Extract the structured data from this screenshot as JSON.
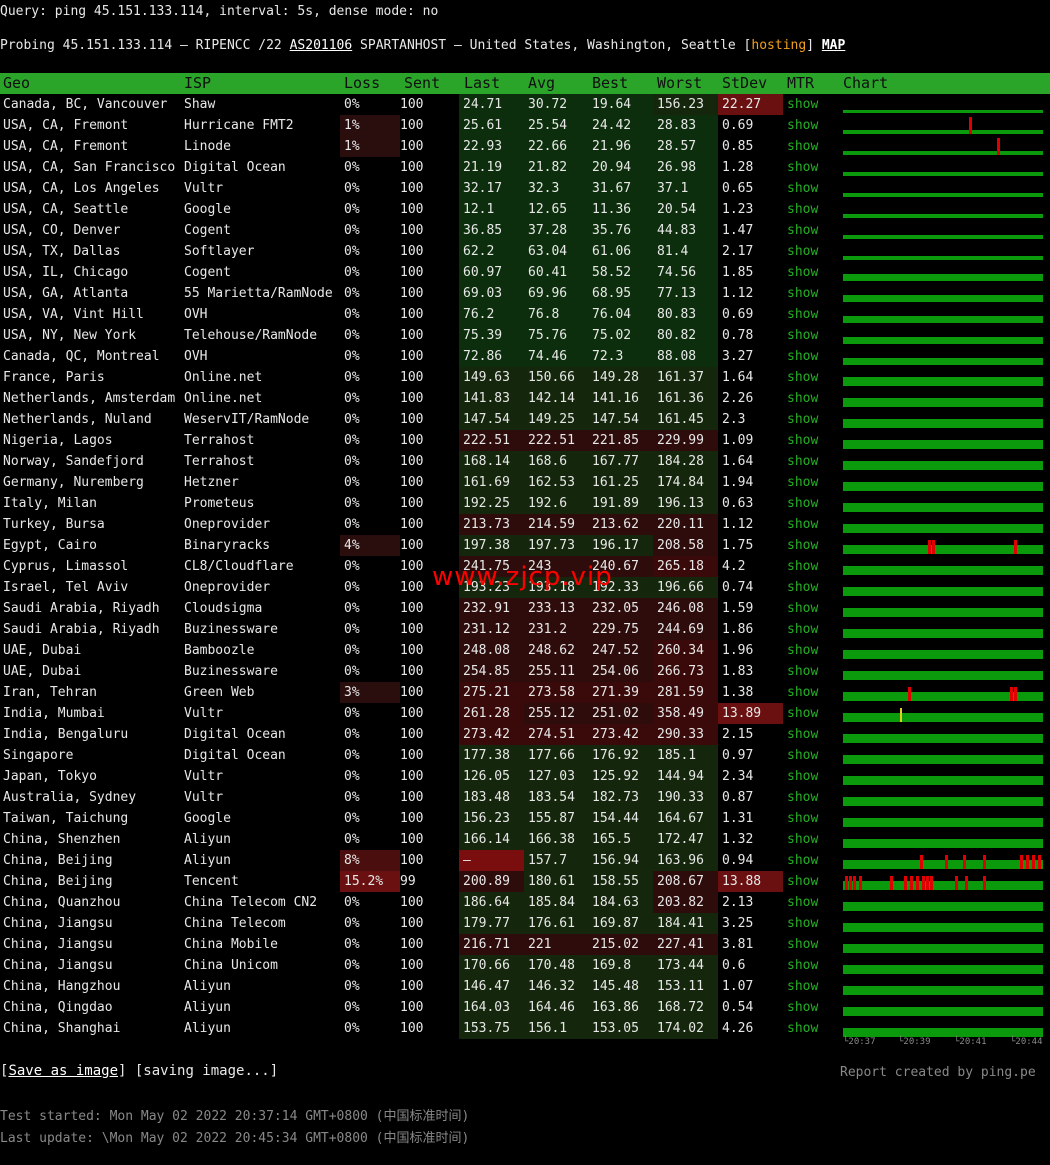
{
  "query": "Query: ping 45.151.133.114, interval: 5s, dense mode: no",
  "probe": {
    "prefix": "Probing 45.151.133.114 — RIPENCC /22 ",
    "asn": "AS201106",
    "middle": " SPARTANHOST — United States, Washington, Seattle [",
    "tag": "hosting",
    "close": "] ",
    "map": "MAP"
  },
  "headers": [
    "Geo",
    "ISP",
    "Loss",
    "Sent",
    "Last",
    "Avg",
    "Best",
    "Worst",
    "StDev",
    "MTR",
    "Chart"
  ],
  "rows": [
    {
      "geo": "Canada, BC, Vancouver",
      "isp": "Shaw",
      "loss": "0%",
      "sent": "100",
      "last": "24.71",
      "avg": "30.72",
      "best": "19.64",
      "worst": "156.23",
      "stdev": "22.27",
      "mtr": "show",
      "chart": "noisy"
    },
    {
      "geo": "USA, CA, Fremont",
      "isp": "Hurricane FMT2",
      "loss": "1%",
      "sent": "100",
      "last": "25.61",
      "avg": "25.54",
      "best": "24.42",
      "worst": "28.83",
      "stdev": "0.69",
      "mtr": "show",
      "chart": "thin",
      "spikes": [
        0.64
      ]
    },
    {
      "geo": "USA, CA, Fremont",
      "isp": "Linode",
      "loss": "1%",
      "sent": "100",
      "last": "22.93",
      "avg": "22.66",
      "best": "21.96",
      "worst": "28.57",
      "stdev": "0.85",
      "mtr": "show",
      "chart": "thin",
      "spikes": [
        0.78
      ]
    },
    {
      "geo": "USA, CA, San Francisco",
      "isp": "Digital Ocean",
      "loss": "0%",
      "sent": "100",
      "last": "21.19",
      "avg": "21.82",
      "best": "20.94",
      "worst": "26.98",
      "stdev": "1.28",
      "mtr": "show",
      "chart": "thin"
    },
    {
      "geo": "USA, CA, Los Angeles",
      "isp": "Vultr",
      "loss": "0%",
      "sent": "100",
      "last": "32.17",
      "avg": "32.3",
      "best": "31.67",
      "worst": "37.1",
      "stdev": "0.65",
      "mtr": "show",
      "chart": "thin"
    },
    {
      "geo": "USA, CA, Seattle",
      "isp": "Google",
      "loss": "0%",
      "sent": "100",
      "last": "12.1",
      "avg": "12.65",
      "best": "11.36",
      "worst": "20.54",
      "stdev": "1.23",
      "mtr": "show",
      "chart": "thin"
    },
    {
      "geo": "USA, CO, Denver",
      "isp": "Cogent",
      "loss": "0%",
      "sent": "100",
      "last": "36.85",
      "avg": "37.28",
      "best": "35.76",
      "worst": "44.83",
      "stdev": "1.47",
      "mtr": "show",
      "chart": "thin"
    },
    {
      "geo": "USA, TX, Dallas",
      "isp": "Softlayer",
      "loss": "0%",
      "sent": "100",
      "last": "62.2",
      "avg": "63.04",
      "best": "61.06",
      "worst": "81.4",
      "stdev": "2.17",
      "mtr": "show",
      "chart": "thin"
    },
    {
      "geo": "USA, IL, Chicago",
      "isp": "Cogent",
      "loss": "0%",
      "sent": "100",
      "last": "60.97",
      "avg": "60.41",
      "best": "58.52",
      "worst": "74.56",
      "stdev": "1.85",
      "mtr": "show",
      "chart": "mid"
    },
    {
      "geo": "USA, GA, Atlanta",
      "isp": "55 Marietta/RamNode",
      "loss": "0%",
      "sent": "100",
      "last": "69.03",
      "avg": "69.96",
      "best": "68.95",
      "worst": "77.13",
      "stdev": "1.12",
      "mtr": "show",
      "chart": "mid"
    },
    {
      "geo": "USA, VA, Vint Hill",
      "isp": "OVH",
      "loss": "0%",
      "sent": "100",
      "last": "76.2",
      "avg": "76.8",
      "best": "76.04",
      "worst": "80.83",
      "stdev": "0.69",
      "mtr": "show",
      "chart": "mid"
    },
    {
      "geo": "USA, NY, New York",
      "isp": "Telehouse/RamNode",
      "loss": "0%",
      "sent": "100",
      "last": "75.39",
      "avg": "75.76",
      "best": "75.02",
      "worst": "80.82",
      "stdev": "0.78",
      "mtr": "show",
      "chart": "mid"
    },
    {
      "geo": "Canada, QC, Montreal",
      "isp": "OVH",
      "loss": "0%",
      "sent": "100",
      "last": "72.86",
      "avg": "74.46",
      "best": "72.3",
      "worst": "88.08",
      "stdev": "3.27",
      "mtr": "show",
      "chart": "mid"
    },
    {
      "geo": "France, Paris",
      "isp": "Online.net",
      "loss": "0%",
      "sent": "100",
      "last": "149.63",
      "avg": "150.66",
      "best": "149.28",
      "worst": "161.37",
      "stdev": "1.64",
      "mtr": "show",
      "chart": "full"
    },
    {
      "geo": "Netherlands, Amsterdam",
      "isp": "Online.net",
      "loss": "0%",
      "sent": "100",
      "last": "141.83",
      "avg": "142.14",
      "best": "141.16",
      "worst": "161.36",
      "stdev": "2.26",
      "mtr": "show",
      "chart": "full"
    },
    {
      "geo": "Netherlands, Nuland",
      "isp": "WeservIT/RamNode",
      "loss": "0%",
      "sent": "100",
      "last": "147.54",
      "avg": "149.25",
      "best": "147.54",
      "worst": "161.45",
      "stdev": "2.3",
      "mtr": "show",
      "chart": "full"
    },
    {
      "geo": "Nigeria, Lagos",
      "isp": "Terrahost",
      "loss": "0%",
      "sent": "100",
      "last": "222.51",
      "avg": "222.51",
      "best": "221.85",
      "worst": "229.99",
      "stdev": "1.09",
      "mtr": "show",
      "chart": "full"
    },
    {
      "geo": "Norway, Sandefjord",
      "isp": "Terrahost",
      "loss": "0%",
      "sent": "100",
      "last": "168.14",
      "avg": "168.6",
      "best": "167.77",
      "worst": "184.28",
      "stdev": "1.64",
      "mtr": "show",
      "chart": "full"
    },
    {
      "geo": "Germany, Nuremberg",
      "isp": "Hetzner",
      "loss": "0%",
      "sent": "100",
      "last": "161.69",
      "avg": "162.53",
      "best": "161.25",
      "worst": "174.84",
      "stdev": "1.94",
      "mtr": "show",
      "chart": "full"
    },
    {
      "geo": "Italy, Milan",
      "isp": "Prometeus",
      "loss": "0%",
      "sent": "100",
      "last": "192.25",
      "avg": "192.6",
      "best": "191.89",
      "worst": "196.13",
      "stdev": "0.63",
      "mtr": "show",
      "chart": "full"
    },
    {
      "geo": "Turkey, Bursa",
      "isp": "Oneprovider",
      "loss": "0%",
      "sent": "100",
      "last": "213.73",
      "avg": "214.59",
      "best": "213.62",
      "worst": "220.11",
      "stdev": "1.12",
      "mtr": "show",
      "chart": "full"
    },
    {
      "geo": "Egypt, Cairo",
      "isp": "Binaryracks",
      "loss": "4%",
      "sent": "100",
      "last": "197.38",
      "avg": "197.73",
      "best": "196.17",
      "worst": "208.58",
      "stdev": "1.75",
      "mtr": "show",
      "chart": "full",
      "spikes": [
        0.43,
        0.45,
        0.87
      ]
    },
    {
      "geo": "Cyprus, Limassol",
      "isp": "CL8/Cloudflare",
      "loss": "0%",
      "sent": "100",
      "last": "241.75",
      "avg": "243",
      "best": "240.67",
      "worst": "265.18",
      "stdev": "4.2",
      "mtr": "show",
      "chart": "full"
    },
    {
      "geo": "Israel, Tel Aviv",
      "isp": "Oneprovider",
      "loss": "0%",
      "sent": "100",
      "last": "193.23",
      "avg": "193.18",
      "best": "192.33",
      "worst": "196.66",
      "stdev": "0.74",
      "mtr": "show",
      "chart": "full"
    },
    {
      "geo": "Saudi Arabia, Riyadh",
      "isp": "Cloudsigma",
      "loss": "0%",
      "sent": "100",
      "last": "232.91",
      "avg": "233.13",
      "best": "232.05",
      "worst": "246.08",
      "stdev": "1.59",
      "mtr": "show",
      "chart": "full"
    },
    {
      "geo": "Saudi Arabia, Riyadh",
      "isp": "Buzinessware",
      "loss": "0%",
      "sent": "100",
      "last": "231.12",
      "avg": "231.2",
      "best": "229.75",
      "worst": "244.69",
      "stdev": "1.86",
      "mtr": "show",
      "chart": "full"
    },
    {
      "geo": "UAE, Dubai",
      "isp": "Bamboozle",
      "loss": "0%",
      "sent": "100",
      "last": "248.08",
      "avg": "248.62",
      "best": "247.52",
      "worst": "260.34",
      "stdev": "1.96",
      "mtr": "show",
      "chart": "full"
    },
    {
      "geo": "UAE, Dubai",
      "isp": "Buzinessware",
      "loss": "0%",
      "sent": "100",
      "last": "254.85",
      "avg": "255.11",
      "best": "254.06",
      "worst": "266.73",
      "stdev": "1.83",
      "mtr": "show",
      "chart": "full"
    },
    {
      "geo": "Iran, Tehran",
      "isp": "Green Web",
      "loss": "3%",
      "sent": "100",
      "last": "275.21",
      "avg": "273.58",
      "best": "271.39",
      "worst": "281.59",
      "stdev": "1.38",
      "mtr": "show",
      "chart": "full",
      "spikes": [
        0.33,
        0.85,
        0.87
      ]
    },
    {
      "geo": "India, Mumbai",
      "isp": "Vultr",
      "loss": "0%",
      "sent": "100",
      "last": "261.28",
      "avg": "255.12",
      "best": "251.02",
      "worst": "358.49",
      "stdev": "13.89",
      "mtr": "show",
      "chart": "full",
      "yellow": [
        0.29
      ]
    },
    {
      "geo": "India, Bengaluru",
      "isp": "Digital Ocean",
      "loss": "0%",
      "sent": "100",
      "last": "273.42",
      "avg": "274.51",
      "best": "273.42",
      "worst": "290.33",
      "stdev": "2.15",
      "mtr": "show",
      "chart": "full"
    },
    {
      "geo": "Singapore",
      "isp": "Digital Ocean",
      "loss": "0%",
      "sent": "100",
      "last": "177.38",
      "avg": "177.66",
      "best": "176.92",
      "worst": "185.1",
      "stdev": "0.97",
      "mtr": "show",
      "chart": "full"
    },
    {
      "geo": "Japan, Tokyo",
      "isp": "Vultr",
      "loss": "0%",
      "sent": "100",
      "last": "126.05",
      "avg": "127.03",
      "best": "125.92",
      "worst": "144.94",
      "stdev": "2.34",
      "mtr": "show",
      "chart": "full"
    },
    {
      "geo": "Australia, Sydney",
      "isp": "Vultr",
      "loss": "0%",
      "sent": "100",
      "last": "183.48",
      "avg": "183.54",
      "best": "182.73",
      "worst": "190.33",
      "stdev": "0.87",
      "mtr": "show",
      "chart": "full"
    },
    {
      "geo": "Taiwan, Taichung",
      "isp": "Google",
      "loss": "0%",
      "sent": "100",
      "last": "156.23",
      "avg": "155.87",
      "best": "154.44",
      "worst": "164.67",
      "stdev": "1.31",
      "mtr": "show",
      "chart": "full"
    },
    {
      "geo": "China, Shenzhen",
      "isp": "Aliyun",
      "loss": "0%",
      "sent": "100",
      "last": "166.14",
      "avg": "166.38",
      "best": "165.5",
      "worst": "172.47",
      "stdev": "1.32",
      "mtr": "show",
      "chart": "full"
    },
    {
      "geo": "China, Beijing",
      "isp": "Aliyun",
      "loss": "8%",
      "sent": "100",
      "last": "—",
      "avg": "157.7",
      "best": "156.94",
      "worst": "163.96",
      "stdev": "0.94",
      "mtr": "show",
      "chart": "full",
      "spikes": [
        0.39,
        0.52,
        0.61,
        0.71,
        0.9,
        0.93,
        0.96,
        0.99
      ]
    },
    {
      "geo": "China, Beijing",
      "isp": "Tencent",
      "loss": "15.2%",
      "sent": "99",
      "last": "200.89",
      "avg": "180.61",
      "best": "158.55",
      "worst": "208.67",
      "stdev": "13.88",
      "mtr": "show",
      "chart": "full",
      "spikes": [
        0.01,
        0.03,
        0.05,
        0.08,
        0.24,
        0.31,
        0.34,
        0.37,
        0.4,
        0.42,
        0.44,
        0.57,
        0.62,
        0.71
      ]
    },
    {
      "geo": "China, Quanzhou",
      "isp": "China Telecom CN2",
      "loss": "0%",
      "sent": "100",
      "last": "186.64",
      "avg": "185.84",
      "best": "184.63",
      "worst": "203.82",
      "stdev": "2.13",
      "mtr": "show",
      "chart": "full"
    },
    {
      "geo": "China, Jiangsu",
      "isp": "China Telecom",
      "loss": "0%",
      "sent": "100",
      "last": "179.77",
      "avg": "176.61",
      "best": "169.87",
      "worst": "184.41",
      "stdev": "3.25",
      "mtr": "show",
      "chart": "full"
    },
    {
      "geo": "China, Jiangsu",
      "isp": "China Mobile",
      "loss": "0%",
      "sent": "100",
      "last": "216.71",
      "avg": "221",
      "best": "215.02",
      "worst": "227.41",
      "stdev": "3.81",
      "mtr": "show",
      "chart": "full"
    },
    {
      "geo": "China, Jiangsu",
      "isp": "China Unicom",
      "loss": "0%",
      "sent": "100",
      "last": "170.66",
      "avg": "170.48",
      "best": "169.8",
      "worst": "173.44",
      "stdev": "0.6",
      "mtr": "show",
      "chart": "full"
    },
    {
      "geo": "China, Hangzhou",
      "isp": "Aliyun",
      "loss": "0%",
      "sent": "100",
      "last": "146.47",
      "avg": "146.32",
      "best": "145.48",
      "worst": "153.11",
      "stdev": "1.07",
      "mtr": "show",
      "chart": "full"
    },
    {
      "geo": "China, Qingdao",
      "isp": "Aliyun",
      "loss": "0%",
      "sent": "100",
      "last": "164.03",
      "avg": "164.46",
      "best": "163.86",
      "worst": "168.72",
      "stdev": "0.54",
      "mtr": "show",
      "chart": "full"
    },
    {
      "geo": "China, Shanghai",
      "isp": "Aliyun",
      "loss": "0%",
      "sent": "100",
      "last": "153.75",
      "avg": "156.1",
      "best": "153.05",
      "worst": "174.02",
      "stdev": "4.26",
      "mtr": "show",
      "chart": "full"
    }
  ],
  "chart_ticks": [
    "└20:37",
    "└20:39",
    "└20:41",
    "└20:44"
  ],
  "footer": {
    "save_open": "[",
    "save_label": "Save as image",
    "save_close": "] [saving image...]",
    "report": "Report created by ping.pe"
  },
  "meta": {
    "started": "Test started: Mon May 02 2022 20:37:14 GMT+0800 (中国标准时间)",
    "updated": "Last update: \\Mon May 02 2022 20:45:34 GMT+0800 (中国标准时间)"
  },
  "watermark": "www.zjcp.vip",
  "colors": {
    "header": "#2aa52a",
    "bar": "#0b9a0b",
    "spike": "#e00000",
    "mtr": "#25b025",
    "hosting": "#f0a020"
  }
}
